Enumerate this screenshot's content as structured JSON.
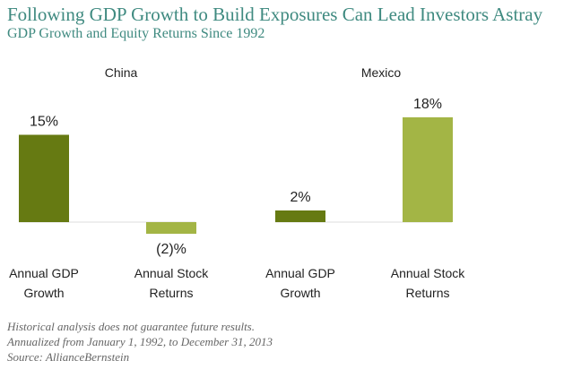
{
  "chart_data": [
    {
      "type": "bar",
      "title": "China",
      "categories": [
        "Annual GDP Growth",
        "Annual Stock Returns"
      ],
      "values": [
        15,
        -2
      ],
      "data_labels": [
        "15%",
        "(2)%"
      ],
      "colors": [
        "#667a12",
        "#a3b545"
      ]
    },
    {
      "type": "bar",
      "title": "Mexico",
      "categories": [
        "Annual GDP Growth",
        "Annual Stock Returns"
      ],
      "values": [
        2,
        18
      ],
      "data_labels": [
        "2%",
        "18%"
      ],
      "colors": [
        "#667a12",
        "#a3b545"
      ]
    }
  ],
  "header": {
    "title": "Following GDP Growth to Build Exposures Can Lead Investors Astray",
    "subtitle": "GDP Growth and Equity Returns Since 1992"
  },
  "footnotes": [
    "Historical analysis does not guarantee future results.",
    "Annualized from January 1, 1992, to December 31, 2013",
    "Source: AllianceBernstein"
  ],
  "colors": {
    "title": "#3f8a80",
    "dark_bar": "#667a12",
    "light_bar": "#a3b545"
  }
}
